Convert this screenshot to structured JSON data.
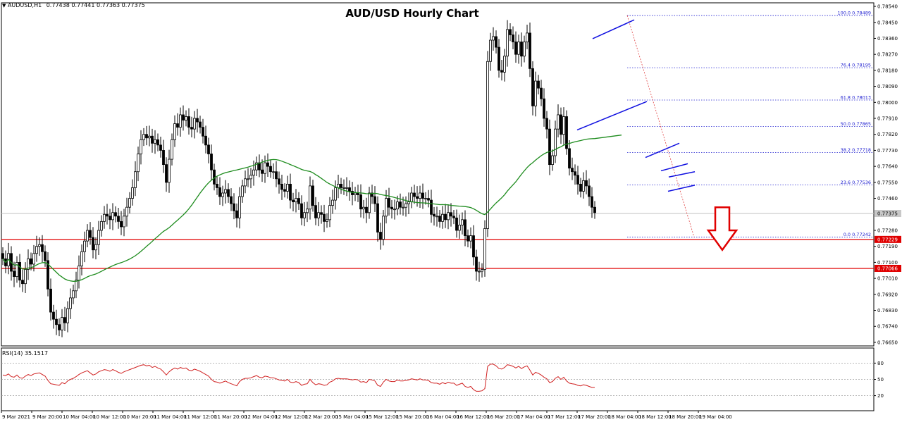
{
  "header": {
    "symbol_label": "AUDUSD,H1",
    "ohlc": [
      "0.77438",
      "0.77441",
      "0.77363",
      "0.77375"
    ]
  },
  "chart_data": [
    {
      "type": "candlestick",
      "title": "AUD/USD Hourly Chart",
      "symbol": "AUDUSD",
      "timeframe": "H1",
      "y_ticks": [
        "0.78540",
        "0.78450",
        "0.78360",
        "0.78270",
        "0.78180",
        "0.78090",
        "0.78000",
        "0.77910",
        "0.77820",
        "0.77730",
        "0.77640",
        "0.77550",
        "0.77460",
        "0.77375",
        "0.77280",
        "0.77229",
        "0.77190",
        "0.77100",
        "0.77066",
        "0.77010",
        "0.76920",
        "0.76830",
        "0.76740",
        "0.76650"
      ],
      "ylim": [
        0.7663,
        0.7856
      ],
      "x_tick_labels": [
        "9 Mar 2021",
        "9 Mar 20:00",
        "10 Mar 04:00",
        "10 Mar 12:00",
        "10 Mar 20:00",
        "11 Mar 04:00",
        "11 Mar 12:00",
        "11 Mar 20:00",
        "12 Mar 04:00",
        "12 Mar 12:00",
        "12 Mar 20:00",
        "15 Mar 04:00",
        "15 Mar 12:00",
        "15 Mar 20:00",
        "16 Mar 04:00",
        "16 Mar 12:00",
        "16 Mar 20:00",
        "17 Mar 04:00",
        "17 Mar 12:00",
        "17 Mar 20:00",
        "18 Mar 04:00",
        "18 Mar 12:00",
        "18 Mar 20:00",
        "19 Mar 04:00"
      ],
      "current_price": "0.77375",
      "horizontal_levels": [
        {
          "label": "0.77229",
          "value": 0.77229,
          "color": "#e00000"
        },
        {
          "label": "0.77066",
          "value": 0.77066,
          "color": "#e00000"
        }
      ],
      "fibonacci": [
        {
          "label": "100.0 0.78489",
          "value": 0.78489
        },
        {
          "label": "76.4 0.78195",
          "value": 0.78195
        },
        {
          "label": "61.8 0.78013",
          "value": 0.78013
        },
        {
          "label": "50.0 0.77865",
          "value": 0.77865
        },
        {
          "label": "38.2 0.77718",
          "value": 0.77718
        },
        {
          "label": "23.6 0.77536",
          "value": 0.77536
        },
        {
          "label": "0.0 0.77242",
          "value": 0.77242
        }
      ],
      "closes": [
        0.7712,
        0.7708,
        0.7715,
        0.7705,
        0.7702,
        0.771,
        0.77,
        0.7698,
        0.7706,
        0.7712,
        0.7709,
        0.7715,
        0.7719,
        0.772,
        0.7716,
        0.7711,
        0.7695,
        0.7682,
        0.7678,
        0.7675,
        0.7672,
        0.7679,
        0.7676,
        0.7684,
        0.769,
        0.7694,
        0.77,
        0.7708,
        0.7716,
        0.7722,
        0.7728,
        0.7724,
        0.7717,
        0.772,
        0.7728,
        0.7733,
        0.7737,
        0.7736,
        0.7734,
        0.7738,
        0.7736,
        0.7733,
        0.773,
        0.7736,
        0.7741,
        0.7746,
        0.7752,
        0.7761,
        0.7771,
        0.7779,
        0.7782,
        0.778,
        0.7781,
        0.7777,
        0.7779,
        0.7776,
        0.7773,
        0.7765,
        0.7755,
        0.7768,
        0.7779,
        0.7788,
        0.7786,
        0.7793,
        0.779,
        0.7792,
        0.7786,
        0.7785,
        0.7791,
        0.7789,
        0.7786,
        0.7781,
        0.7776,
        0.7771,
        0.7762,
        0.7754,
        0.7752,
        0.7747,
        0.7749,
        0.7751,
        0.7747,
        0.7743,
        0.7739,
        0.7735,
        0.7747,
        0.7753,
        0.7757,
        0.7757,
        0.7759,
        0.7762,
        0.7766,
        0.7762,
        0.776,
        0.7766,
        0.7764,
        0.7761,
        0.7761,
        0.7757,
        0.7754,
        0.7751,
        0.775,
        0.7754,
        0.7745,
        0.7744,
        0.7746,
        0.7743,
        0.7735,
        0.7738,
        0.774,
        0.7753,
        0.7742,
        0.7735,
        0.7738,
        0.7737,
        0.7733,
        0.7734,
        0.7742,
        0.7745,
        0.7752,
        0.7754,
        0.7752,
        0.7752,
        0.7752,
        0.775,
        0.7748,
        0.7749,
        0.7748,
        0.774,
        0.7741,
        0.7738,
        0.7749,
        0.7747,
        0.7743,
        0.7727,
        0.7723,
        0.7736,
        0.7746,
        0.7741,
        0.774,
        0.774,
        0.7744,
        0.7741,
        0.7741,
        0.7743,
        0.7744,
        0.7749,
        0.7747,
        0.7746,
        0.7749,
        0.7746,
        0.7746,
        0.7745,
        0.7737,
        0.7736,
        0.7736,
        0.7733,
        0.7737,
        0.7734,
        0.7738,
        0.7736,
        0.7735,
        0.7728,
        0.7731,
        0.7734,
        0.7725,
        0.7722,
        0.7725,
        0.7713,
        0.7705,
        0.7705,
        0.7706,
        0.7729,
        0.7823,
        0.7835,
        0.7837,
        0.7831,
        0.7818,
        0.7817,
        0.7826,
        0.7841,
        0.7838,
        0.7834,
        0.7827,
        0.7834,
        0.7826,
        0.7834,
        0.7839,
        0.7819,
        0.7798,
        0.7812,
        0.7808,
        0.7802,
        0.7791,
        0.7785,
        0.7765,
        0.777,
        0.7785,
        0.7793,
        0.7782,
        0.7792,
        0.7774,
        0.7763,
        0.7761,
        0.7759,
        0.7754,
        0.775,
        0.7756,
        0.7753,
        0.7747,
        0.7741,
        0.7738
      ],
      "ma_period_label": "green moving average",
      "rsi": {
        "label": "RSI(14) 35.1517",
        "levels": [
          "80",
          "50",
          "20"
        ],
        "ylim": [
          0,
          100
        ],
        "values": [
          58,
          57,
          60,
          55,
          54,
          58,
          53,
          52,
          56,
          59,
          57,
          60,
          61,
          62,
          59,
          56,
          48,
          42,
          41,
          40,
          39,
          44,
          42,
          47,
          50,
          52,
          55,
          59,
          62,
          64,
          66,
          62,
          58,
          60,
          64,
          66,
          68,
          67,
          65,
          68,
          66,
          63,
          61,
          64,
          66,
          68,
          70,
          72,
          74,
          76,
          77,
          75,
          76,
          72,
          74,
          71,
          69,
          64,
          58,
          64,
          68,
          71,
          69,
          72,
          70,
          71,
          67,
          66,
          69,
          67,
          65,
          62,
          59,
          56,
          50,
          46,
          45,
          43,
          45,
          47,
          44,
          42,
          40,
          38,
          46,
          50,
          52,
          52,
          53,
          55,
          57,
          54,
          53,
          56,
          55,
          53,
          53,
          51,
          49,
          48,
          47,
          50,
          45,
          44,
          46,
          44,
          39,
          41,
          42,
          50,
          44,
          40,
          42,
          41,
          39,
          40,
          45,
          47,
          51,
          52,
          51,
          51,
          51,
          50,
          49,
          50,
          49,
          45,
          46,
          44,
          50,
          49,
          47,
          39,
          37,
          45,
          50,
          47,
          46,
          46,
          49,
          47,
          47,
          48,
          49,
          51,
          50,
          49,
          51,
          49,
          49,
          48,
          44,
          43,
          43,
          41,
          44,
          42,
          45,
          43,
          43,
          39,
          41,
          43,
          37,
          35,
          37,
          31,
          28,
          28,
          29,
          33,
          74,
          78,
          78,
          75,
          70,
          69,
          72,
          77,
          76,
          74,
          71,
          74,
          70,
          73,
          75,
          67,
          58,
          63,
          61,
          58,
          54,
          51,
          44,
          46,
          52,
          55,
          50,
          54,
          47,
          43,
          42,
          41,
          39,
          38,
          40,
          39,
          37,
          35,
          35
        ]
      }
    }
  ]
}
